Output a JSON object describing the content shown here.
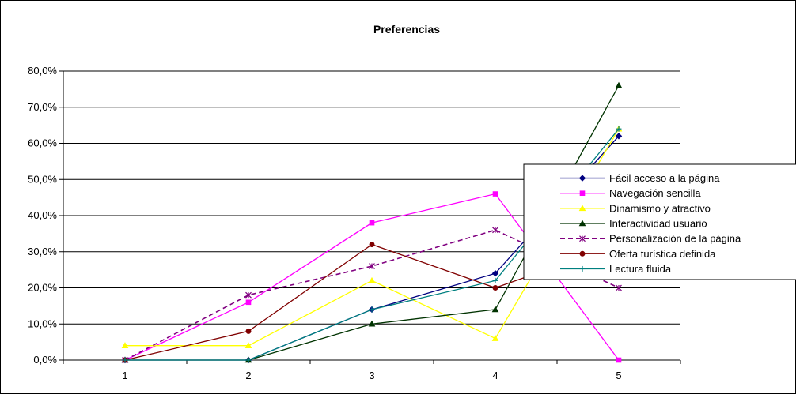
{
  "chart_data": {
    "type": "line",
    "title": "Preferencias",
    "xlabel": "",
    "ylabel": "",
    "x": [
      "1",
      "2",
      "3",
      "4",
      "5"
    ],
    "ylim": [
      0,
      0.8
    ],
    "yticks": [
      {
        "value": 0.0,
        "label": "0,0%"
      },
      {
        "value": 0.1,
        "label": "10,0%"
      },
      {
        "value": 0.2,
        "label": "20,0%"
      },
      {
        "value": 0.3,
        "label": "30,0%"
      },
      {
        "value": 0.4,
        "label": "40,0%"
      },
      {
        "value": 0.5,
        "label": "50,0%"
      },
      {
        "value": 0.6,
        "label": "60,0%"
      },
      {
        "value": 0.7,
        "label": "70,0%"
      },
      {
        "value": 0.8,
        "label": "80,0%"
      }
    ],
    "grid": true,
    "legend_position": "right",
    "series": [
      {
        "name": "Fácil acceso a la página",
        "color": "#000080",
        "marker": "diamond",
        "dash": false,
        "values": [
          0.0,
          0.0,
          0.14,
          0.24,
          0.62
        ]
      },
      {
        "name": "Navegación sencilla",
        "color": "#FF00FF",
        "marker": "square",
        "dash": false,
        "values": [
          0.0,
          0.16,
          0.38,
          0.46,
          0.0
        ]
      },
      {
        "name": "Dinamismo y atractivo",
        "color": "#FFFF00",
        "marker": "triangle",
        "dash": false,
        "values": [
          0.04,
          0.04,
          0.22,
          0.06,
          0.64
        ]
      },
      {
        "name": "Interactividad usuario",
        "color": "#003300",
        "marker": "triangle",
        "dash": false,
        "values": [
          0.0,
          0.0,
          0.1,
          0.14,
          0.76
        ]
      },
      {
        "name": "Personalización de la página",
        "color": "#800080",
        "marker": "star",
        "dash": true,
        "values": [
          0.0,
          0.18,
          0.26,
          0.36,
          0.2
        ]
      },
      {
        "name": "Oferta turística definida",
        "color": "#800000",
        "marker": "circle",
        "dash": false,
        "values": [
          0.0,
          0.08,
          0.32,
          0.2,
          0.32
        ]
      },
      {
        "name": "Lectura fluida",
        "color": "#008080",
        "marker": "plus",
        "dash": false,
        "values": [
          0.0,
          0.0,
          0.14,
          0.22,
          0.64
        ]
      }
    ]
  }
}
